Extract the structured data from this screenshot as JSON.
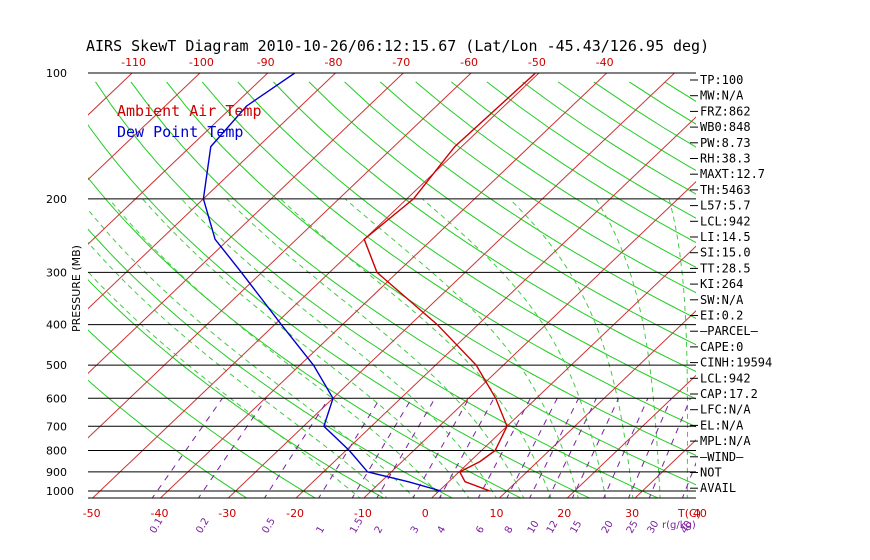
{
  "chart_data": {
    "type": "line",
    "title": "AIRS SkewT Diagram 2010-10-26/06:12:15.67 (Lat/Lon -45.43/126.95 deg)",
    "ylabel": "PRESSURE (MB)",
    "xlabel": "T(C)",
    "mixing_ratio_unit": "r(g/kg)",
    "pressure_ticks": [
      100,
      200,
      300,
      400,
      500,
      600,
      700,
      800,
      900,
      1000
    ],
    "bottom_temp_ticks": [
      -50,
      -40,
      -30,
      -20,
      -10,
      0,
      10,
      20,
      30,
      40
    ],
    "top_temp_ticks": [
      -120,
      -110,
      -100,
      -90,
      -80,
      -70,
      -60,
      -50,
      -40
    ],
    "mixing_ratio_labels": [
      "0.1",
      "0.2",
      "0.5",
      "1",
      "1.5",
      "2",
      "3",
      "4",
      "6",
      "8",
      "10",
      "12",
      "15",
      "20",
      "25",
      "30",
      "40"
    ],
    "legend": [
      {
        "label": "Ambient Air Temp",
        "color": "#cc0000"
      },
      {
        "label": "Dew Point Temp",
        "color": "#0000cc"
      }
    ],
    "series": [
      {
        "name": "Ambient Air Temp",
        "color": "#cc0000",
        "points": [
          {
            "p": 1000,
            "t": 7.5
          },
          {
            "p": 950,
            "t": 2.4
          },
          {
            "p": 900,
            "t": 0.1
          },
          {
            "p": 850,
            "t": 1.5
          },
          {
            "p": 800,
            "t": 2.0
          },
          {
            "p": 700,
            "t": 0.0
          },
          {
            "p": 600,
            "t": -6.0
          },
          {
            "p": 500,
            "t": -14.0
          },
          {
            "p": 400,
            "t": -26.0
          },
          {
            "p": 300,
            "t": -43.0
          },
          {
            "p": 250,
            "t": -50.0
          },
          {
            "p": 200,
            "t": -49.0
          },
          {
            "p": 150,
            "t": -51.0
          },
          {
            "p": 100,
            "t": -50.5
          }
        ]
      },
      {
        "name": "Dew Point Temp",
        "color": "#0000cc",
        "points": [
          {
            "p": 1000,
            "t": 0.3
          },
          {
            "p": 950,
            "t": -6.0
          },
          {
            "p": 900,
            "t": -13.5
          },
          {
            "p": 800,
            "t": -19.5
          },
          {
            "p": 700,
            "t": -27.0
          },
          {
            "p": 600,
            "t": -30.0
          },
          {
            "p": 500,
            "t": -38.0
          },
          {
            "p": 400,
            "t": -49.0
          },
          {
            "p": 300,
            "t": -63.0
          },
          {
            "p": 250,
            "t": -72.0
          },
          {
            "p": 200,
            "t": -80.0
          },
          {
            "p": 150,
            "t": -87.0
          },
          {
            "p": 120,
            "t": -88.0
          },
          {
            "p": 100,
            "t": -86.0
          }
        ]
      }
    ],
    "grid": true
  },
  "indices": [
    "TP:100",
    "MW:N/A",
    "FRZ:862",
    "WB0:848",
    "PW:8.73",
    "RH:38.3",
    "MAXT:12.7",
    "TH:5463",
    "L57:5.7",
    "LCL:942",
    "LI:14.5",
    "SI:15.0",
    "TT:28.5",
    "KI:264",
    "SW:N/A",
    "EI:0.2",
    "—PARCEL—",
    "CAPE:0",
    "CINH:19594",
    "LCL:942",
    "CAP:17.2",
    "LFC:N/A",
    "EL:N/A",
    "MPL:N/A",
    "—WIND—",
    "NOT",
    "AVAIL"
  ],
  "colors": {
    "temperature": "#cc0000",
    "dewpoint": "#0000cc",
    "isotherm": "#cc3333",
    "dry_adiabat": "#22cc22",
    "moist_adiabat": "#44cc44",
    "mixing_ratio": "#7a1fa0",
    "isobar": "#000000"
  }
}
